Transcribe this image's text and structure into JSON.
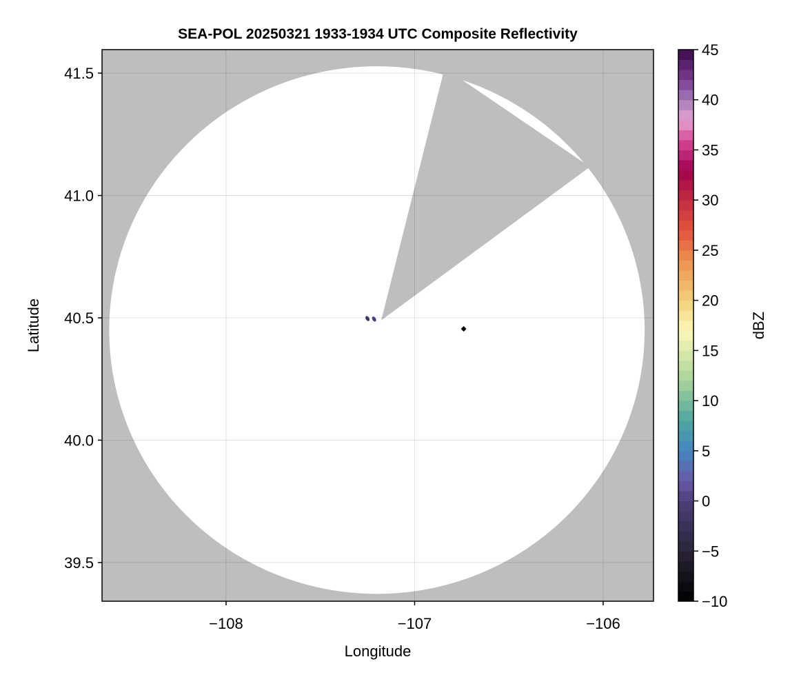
{
  "chart_data": {
    "type": "heatmap",
    "title": "SEA-POL 20250321 1933-1934 UTC Composite Reflectivity",
    "xlabel": "Longitude",
    "ylabel": "Latitude",
    "xlim": [
      -108.658,
      -105.733
    ],
    "ylim": [
      39.342,
      41.596
    ],
    "xticks": [
      -108,
      -107,
      -106
    ],
    "xtick_labels": [
      "−108",
      "−107",
      "−106"
    ],
    "yticks": [
      39.5,
      40.0,
      40.5,
      41.0,
      41.5
    ],
    "ytick_labels": [
      "39.5",
      "40.0",
      "40.5",
      "41.0",
      "41.5"
    ],
    "grid": true,
    "background_color": "#bebebe",
    "no_echo_color": "#ffffff",
    "radar_coverage": {
      "center_lon": -107.2,
      "center_lat": 40.45,
      "radius_lon_deg": 1.42,
      "radius_lat_deg": 1.078
    },
    "radar_location": {
      "lon": -107.177,
      "lat": 40.49
    },
    "blocked_sector": [
      [
        -107.177,
        40.49
      ],
      [
        -106.841,
        41.521
      ],
      [
        -106.07,
        41.117
      ]
    ],
    "echoes": [
      {
        "lon": -107.215,
        "lat": 40.495,
        "dbz": 0
      },
      {
        "lon": -107.25,
        "lat": 40.497,
        "dbz": -2
      }
    ],
    "marker": {
      "lon": -106.74,
      "lat": 40.455,
      "color": "#000000",
      "shape": "diamond"
    },
    "colorbar": {
      "label": "dBZ",
      "range": [
        -10,
        45
      ],
      "step": 1,
      "ticks": [
        -10,
        -5,
        0,
        5,
        10,
        15,
        20,
        25,
        30,
        35,
        40,
        45
      ],
      "tick_labels": [
        "−10",
        "−5",
        "0",
        "5",
        "10",
        "15",
        "20",
        "25",
        "30",
        "35",
        "40",
        "45"
      ],
      "stops": [
        [
          -10,
          "#000000"
        ],
        [
          -5,
          "#2a2438"
        ],
        [
          0,
          "#4c3f7a"
        ],
        [
          2,
          "#6a5aa8"
        ],
        [
          5,
          "#4485c0"
        ],
        [
          8,
          "#4ea6a0"
        ],
        [
          12,
          "#a8d49a"
        ],
        [
          17,
          "#fbf8b8"
        ],
        [
          20,
          "#f2d07a"
        ],
        [
          24,
          "#ec9050"
        ],
        [
          27,
          "#e3533d"
        ],
        [
          31,
          "#b81f44"
        ],
        [
          33,
          "#a0004f"
        ],
        [
          36,
          "#d64a96"
        ],
        [
          38,
          "#e5a4d2"
        ],
        [
          40,
          "#a57ab8"
        ],
        [
          42,
          "#7a3c90"
        ],
        [
          45,
          "#3c0a4a"
        ]
      ]
    }
  }
}
